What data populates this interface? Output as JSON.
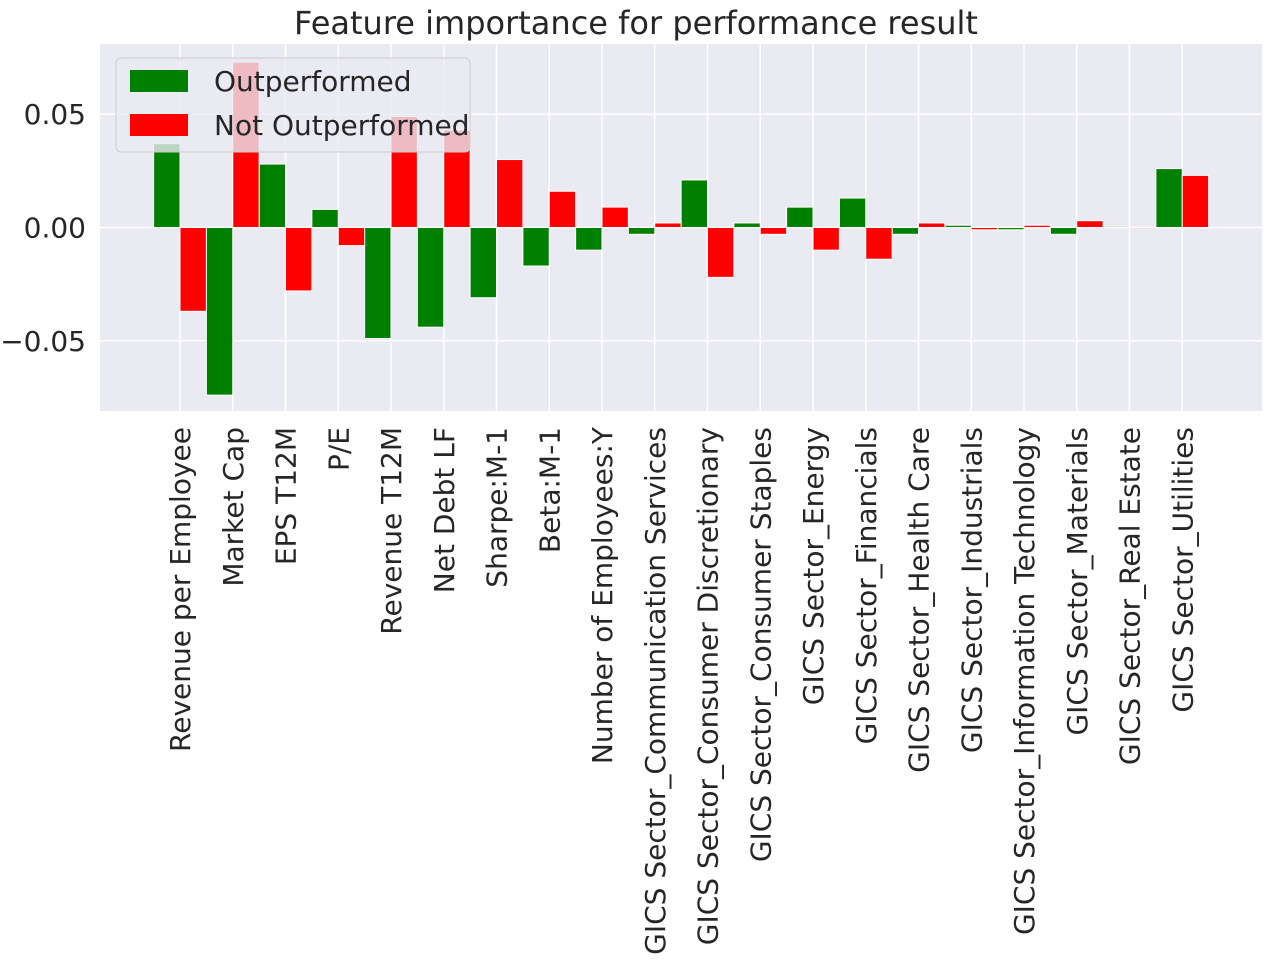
{
  "chart_data": {
    "type": "bar",
    "title": "Feature importance for performance result",
    "xlabel": "",
    "ylabel": "",
    "ylim": [
      -0.081,
      0.081
    ],
    "yticks": [
      0.05,
      0.0,
      -0.05
    ],
    "ytick_labels": [
      "0.05",
      "0.00",
      "−0.05"
    ],
    "grid": true,
    "legend_position": "upper-left",
    "categories": [
      "Revenue per Employee",
      "Market Cap",
      "EPS T12M",
      "P/E",
      "Revenue T12M",
      "Net Debt LF",
      "Sharpe:M-1",
      "Beta:M-1",
      "Number of Employees:Y",
      "GICS Sector_Communication Services",
      "GICS Sector_Consumer Discretionary",
      "GICS Sector_Consumer Staples",
      "GICS Sector_Energy",
      "GICS Sector_Financials",
      "GICS Sector_Health Care",
      "GICS Sector_Industrials",
      "GICS Sector_Information Technology",
      "GICS Sector_Materials",
      "GICS Sector_Real Estate",
      "GICS Sector_Utilities"
    ],
    "series": [
      {
        "name": "Outperformed",
        "color": "#008000",
        "values": [
          0.037,
          -0.074,
          0.028,
          0.008,
          -0.049,
          -0.044,
          -0.031,
          -0.017,
          -0.01,
          -0.003,
          0.021,
          0.002,
          0.009,
          0.013,
          -0.003,
          0.001,
          -0.001,
          -0.003,
          0.0005,
          0.026
        ]
      },
      {
        "name": "Not Outperformed",
        "color": "#ff0000",
        "values": [
          -0.037,
          0.073,
          -0.028,
          -0.008,
          0.049,
          0.043,
          0.03,
          0.016,
          0.009,
          0.002,
          -0.022,
          -0.003,
          -0.01,
          -0.014,
          0.002,
          -0.001,
          0.001,
          0.003,
          -0.0005,
          0.023
        ]
      }
    ]
  }
}
